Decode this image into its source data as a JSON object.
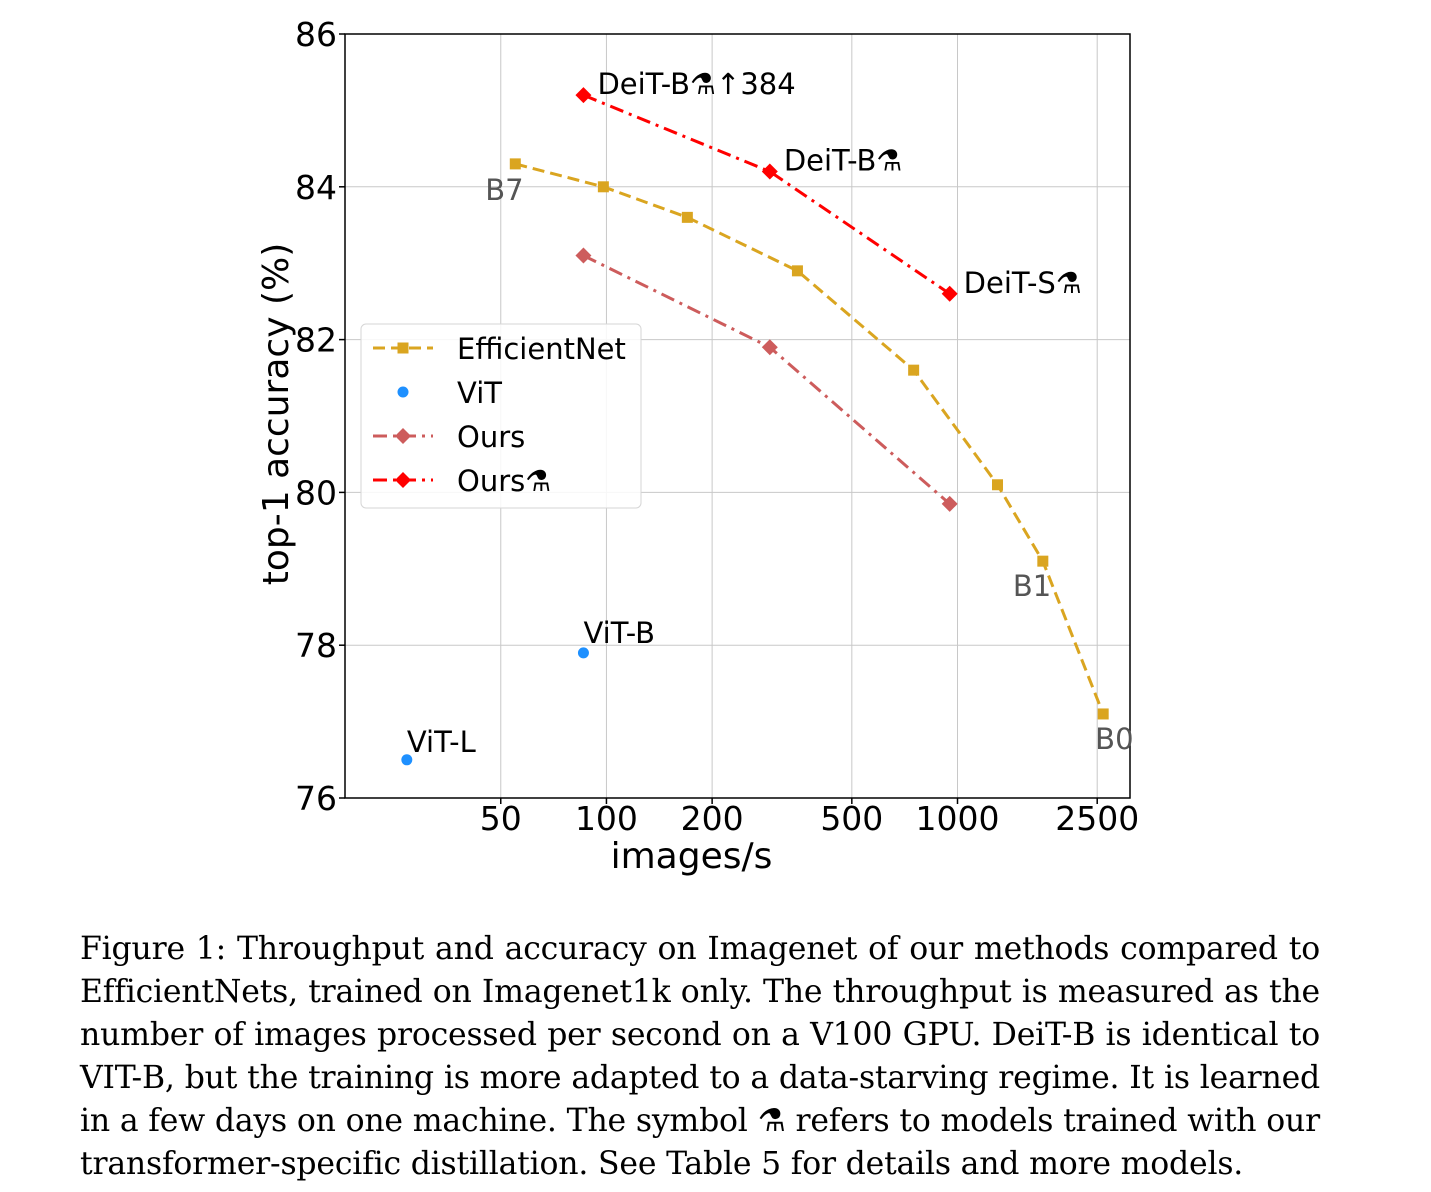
{
  "chart_data": {
    "type": "line",
    "xscale": "log",
    "xlabel": "images/s",
    "ylabel": "top-1 accuracy (%)",
    "xlim": [
      18,
      3100
    ],
    "ylim": [
      76,
      86
    ],
    "xticks": [
      50,
      100,
      200,
      500,
      1000,
      2500
    ],
    "xtick_labels": [
      "50",
      "100",
      "200",
      "500",
      "1000",
      "2500"
    ],
    "yticks": [
      76,
      78,
      80,
      82,
      84,
      86
    ],
    "ytick_labels": [
      "76",
      "78",
      "80",
      "82",
      "84",
      "86"
    ],
    "grid": true,
    "legend_position": "center-left",
    "series": [
      {
        "name": "EfficientNet",
        "style": "dashed",
        "marker": "square",
        "color": "#daa520",
        "x": [
          55,
          98,
          170,
          350,
          750,
          1300,
          1750,
          2600
        ],
        "y": [
          84.3,
          84.0,
          83.6,
          82.9,
          81.6,
          80.1,
          79.1,
          77.1
        ]
      },
      {
        "name": "ViT",
        "style": "none",
        "marker": "circle",
        "color": "#1e90ff",
        "x": [
          27,
          86
        ],
        "y": [
          76.5,
          77.9
        ]
      },
      {
        "name": "Ours",
        "style": "dashdot",
        "marker": "diamond",
        "color": "#cd5c5c",
        "x": [
          86,
          292,
          950
        ],
        "y": [
          83.1,
          81.9,
          79.85
        ]
      },
      {
        "name": "Ours⚗",
        "style": "dashdot",
        "marker": "diamond",
        "color": "#ff0000",
        "x": [
          86,
          292,
          950
        ],
        "y": [
          85.2,
          84.2,
          82.6
        ]
      }
    ],
    "annotations": [
      {
        "text": "DeiT-B⚗↑384",
        "x": 86,
        "y": 85.2,
        "color": "#000000"
      },
      {
        "text": "DeiT-B⚗",
        "x": 292,
        "y": 84.2,
        "color": "#000000"
      },
      {
        "text": "DeiT-S⚗",
        "x": 950,
        "y": 82.6,
        "color": "#000000"
      },
      {
        "text": "ViT-B",
        "x": 86,
        "y": 77.9,
        "color": "#000000"
      },
      {
        "text": "ViT-L",
        "x": 27,
        "y": 76.5,
        "color": "#000000"
      },
      {
        "text": "B7",
        "x": 55,
        "y": 84.3,
        "color": "#555555"
      },
      {
        "text": "B1",
        "x": 1750,
        "y": 79.1,
        "color": "#555555"
      },
      {
        "text": "B0",
        "x": 2600,
        "y": 77.1,
        "color": "#555555"
      }
    ]
  },
  "caption": "Figure 1: Throughput and accuracy on Imagenet of our methods compared to EfficientNets, trained on Imagenet1k only. The throughput is measured as the number of images processed per second on a V100 GPU. DeiT-B is identical to VIT-B, but the training is more adapted to a data-starving regime. It is learned in a few days on one machine. The symbol ⚗ refers to models trained with our transformer-specific distillation. See Table 5 for details and more models."
}
